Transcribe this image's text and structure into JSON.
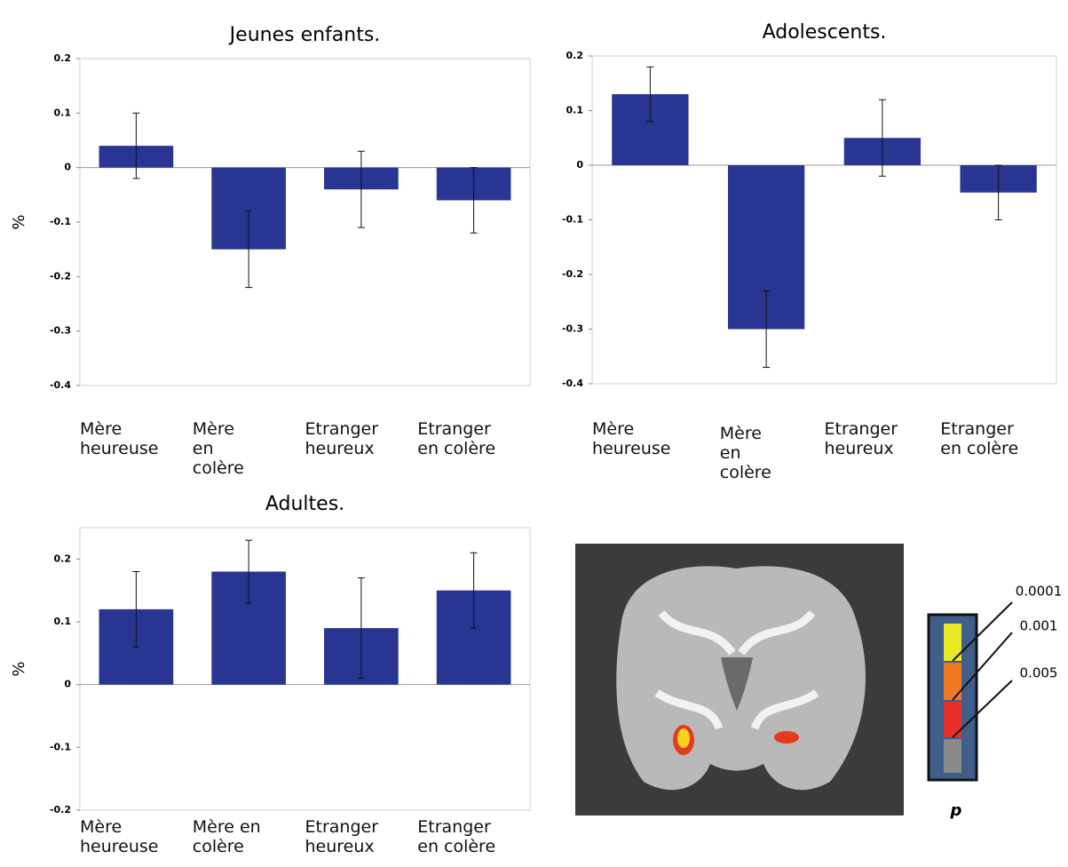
{
  "chart_data": [
    {
      "type": "bar",
      "title": "Jeunes enfants.",
      "ylabel": "%",
      "categories": [
        "Mère\nheureuse",
        "Mère\nen\ncolère",
        "Etranger\nheureux",
        "Etranger\nen colère"
      ],
      "values": [
        0.04,
        -0.15,
        -0.04,
        -0.06
      ],
      "errors": [
        0.06,
        0.07,
        0.07,
        0.06
      ],
      "color": "#283593",
      "ylim": [
        -0.4,
        0.2
      ],
      "yticks": [
        -0.4,
        -0.3,
        -0.2,
        -0.1,
        0,
        0.1,
        0.2
      ]
    },
    {
      "type": "bar",
      "title": "Adolescents.",
      "categories": [
        "Mère\nheureuse",
        "Mère\nen\ncolère",
        "Etranger\nheureux",
        "Etranger\nen colère"
      ],
      "values": [
        0.13,
        -0.3,
        0.05,
        -0.05
      ],
      "errors": [
        0.05,
        0.07,
        0.07,
        0.05
      ],
      "color": "#283593",
      "ylim": [
        -0.4,
        0.2
      ],
      "yticks": [
        -0.4,
        -0.3,
        -0.2,
        -0.1,
        0,
        0.1,
        0.2
      ]
    },
    {
      "type": "bar",
      "title": "Adultes.",
      "ylabel": "%",
      "categories": [
        "Mère\nheureuse",
        "Mère en\ncolère",
        "Etranger\nheureux",
        "Etranger\nen colère"
      ],
      "values": [
        0.12,
        0.18,
        0.09,
        0.15
      ],
      "errors": [
        0.06,
        0.05,
        0.08,
        0.06
      ],
      "color": "#283593",
      "ylim": [
        -0.2,
        0.25
      ],
      "yticks": [
        -0.2,
        -0.1,
        0,
        0.1,
        0.2
      ]
    }
  ],
  "brain_scale": {
    "labels": [
      "0.0001",
      "0.001",
      "0.005"
    ],
    "caption": "p"
  }
}
